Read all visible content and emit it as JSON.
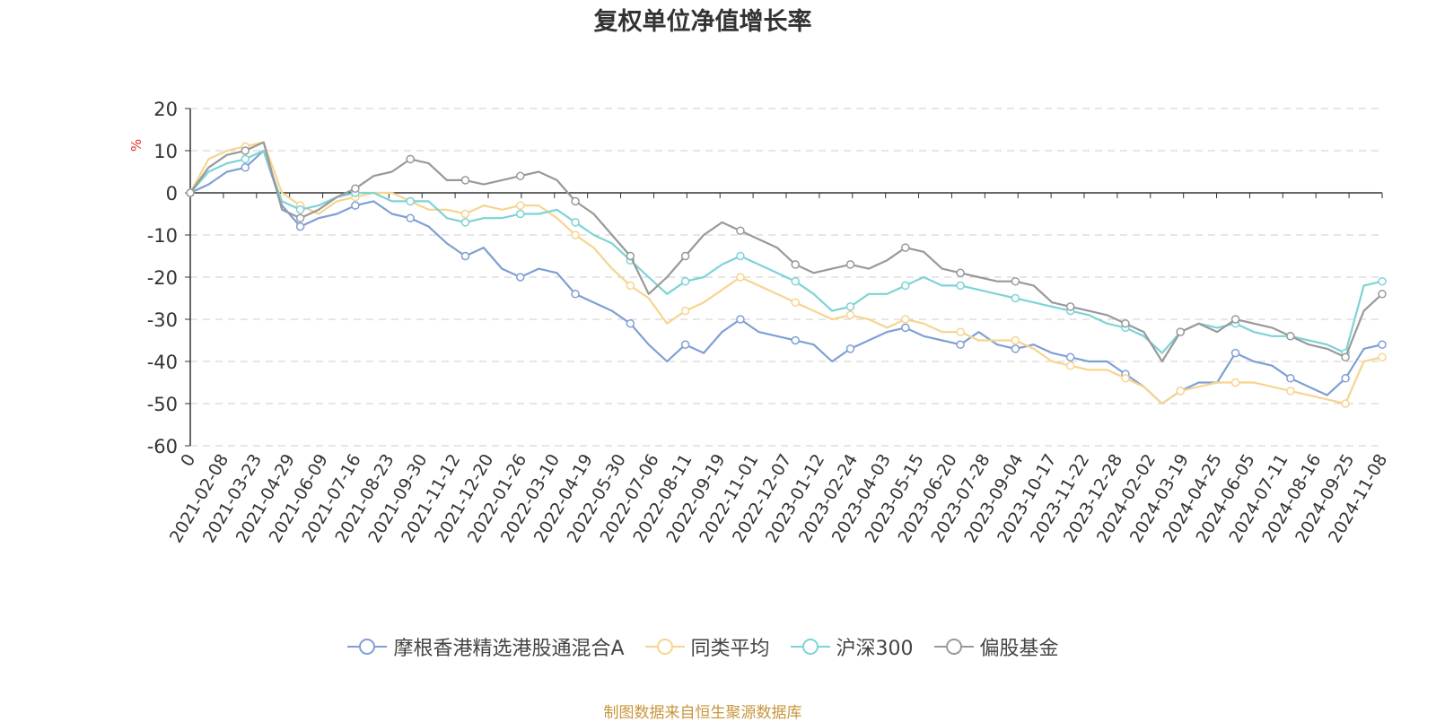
{
  "chart_data": {
    "type": "line",
    "title": "复权单位净值增长率",
    "ylabel": "%",
    "ylim": [
      -60,
      20
    ],
    "yticks": [
      20,
      10,
      0,
      -10,
      -20,
      -30,
      -40,
      -50,
      -60
    ],
    "grid": true,
    "legend_position": "bottom",
    "xticks": [
      "0",
      "2021-02-08",
      "2021-03-23",
      "2021-04-29",
      "2021-06-09",
      "2021-07-16",
      "2021-08-23",
      "2021-09-30",
      "2021-11-12",
      "2021-12-20",
      "2022-01-26",
      "2022-03-10",
      "2022-04-19",
      "2022-05-30",
      "2022-07-06",
      "2022-08-11",
      "2022-09-19",
      "2022-11-01",
      "2022-12-07",
      "2023-01-12",
      "2023-02-24",
      "2023-04-03",
      "2023-05-15",
      "2023-06-20",
      "2023-07-28",
      "2023-09-04",
      "2023-10-17",
      "2023-11-22",
      "2023-12-28",
      "2024-02-02",
      "2024-03-19",
      "2024-04-25",
      "2024-06-05",
      "2024-07-11",
      "2024-08-16",
      "2024-09-25",
      "2024-11-08"
    ],
    "series": [
      {
        "name": "摩根香港精选港股通混合A",
        "color": "#7f9fd4",
        "values": [
          0,
          2,
          5,
          6,
          10,
          -3,
          -8,
          -6,
          -5,
          -3,
          -2,
          -5,
          -6,
          -8,
          -12,
          -15,
          -13,
          -18,
          -20,
          -18,
          -19,
          -24,
          -26,
          -28,
          -31,
          -36,
          -40,
          -36,
          -38,
          -33,
          -30,
          -33,
          -34,
          -35,
          -36,
          -40,
          -37,
          -35,
          -33,
          -32,
          -34,
          -35,
          -36,
          -33,
          -36,
          -37,
          -36,
          -38,
          -39,
          -40,
          -40,
          -43,
          -46,
          -50,
          -47,
          -45,
          -45,
          -38,
          -40,
          -41,
          -44,
          -46,
          -48,
          -44,
          -37,
          -36
        ]
      },
      {
        "name": "同类平均",
        "color": "#f7d48f",
        "values": [
          0,
          8,
          10,
          11,
          12,
          0,
          -3,
          -5,
          -2,
          -1,
          0,
          0,
          -2,
          -4,
          -4,
          -5,
          -3,
          -4,
          -3,
          -3,
          -6,
          -10,
          -13,
          -18,
          -22,
          -25,
          -31,
          -28,
          -26,
          -23,
          -20,
          -22,
          -24,
          -26,
          -28,
          -30,
          -29,
          -30,
          -32,
          -30,
          -31,
          -33,
          -33,
          -35,
          -35,
          -35,
          -37,
          -40,
          -41,
          -42,
          -42,
          -44,
          -46,
          -50,
          -47,
          -46,
          -45,
          -45,
          -45,
          -46,
          -47,
          -48,
          -49,
          -50,
          -40,
          -39
        ]
      },
      {
        "name": "沪深300",
        "color": "#7dd3d6",
        "values": [
          0,
          5,
          7,
          8,
          10,
          -2,
          -4,
          -3,
          -1,
          0,
          0,
          -2,
          -2,
          -2,
          -6,
          -7,
          -6,
          -6,
          -5,
          -5,
          -4,
          -7,
          -10,
          -12,
          -16,
          -20,
          -24,
          -21,
          -20,
          -17,
          -15,
          -17,
          -19,
          -21,
          -24,
          -28,
          -27,
          -24,
          -24,
          -22,
          -20,
          -22,
          -22,
          -23,
          -24,
          -25,
          -26,
          -27,
          -28,
          -29,
          -31,
          -32,
          -34,
          -38,
          -33,
          -31,
          -32,
          -31,
          -33,
          -34,
          -34,
          -35,
          -36,
          -38,
          -22,
          -21
        ]
      },
      {
        "name": "偏股基金",
        "color": "#999999",
        "values": [
          0,
          6,
          9,
          10,
          12,
          -4,
          -6,
          -4,
          -1,
          1,
          4,
          5,
          8,
          7,
          3,
          3,
          2,
          3,
          4,
          5,
          3,
          -2,
          -5,
          -10,
          -15,
          -24,
          -20,
          -15,
          -10,
          -7,
          -9,
          -11,
          -13,
          -17,
          -19,
          -18,
          -17,
          -18,
          -16,
          -13,
          -14,
          -18,
          -19,
          -20,
          -21,
          -21,
          -22,
          -26,
          -27,
          -28,
          -29,
          -31,
          -33,
          -40,
          -33,
          -31,
          -33,
          -30,
          -31,
          -32,
          -34,
          -36,
          -37,
          -39,
          -28,
          -24
        ]
      }
    ]
  },
  "legend": {
    "s0": "摩根香港精选港股通混合A",
    "s1": "同类平均",
    "s2": "沪深300",
    "s3": "偏股基金"
  },
  "source_note": "制图数据来自恒生聚源数据库"
}
